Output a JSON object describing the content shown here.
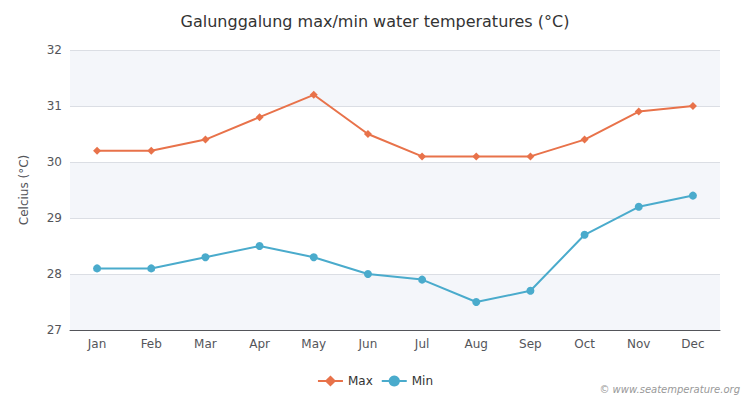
{
  "chart_data": {
    "type": "line",
    "title": "Galunggalung max/min water temperatures (°C)",
    "ylabel": "Celcius (°C)",
    "categories": [
      "Jan",
      "Feb",
      "Mar",
      "Apr",
      "May",
      "Jun",
      "Jul",
      "Aug",
      "Sep",
      "Oct",
      "Nov",
      "Dec"
    ],
    "series": [
      {
        "name": "Max",
        "color": "#e8724a",
        "marker": "diamond",
        "values": [
          30.2,
          30.2,
          30.4,
          30.8,
          31.2,
          30.5,
          30.1,
          30.1,
          30.1,
          30.4,
          30.9,
          31.0
        ]
      },
      {
        "name": "Min",
        "color": "#4aabcc",
        "marker": "circle",
        "values": [
          28.1,
          28.1,
          28.3,
          28.5,
          28.3,
          28.0,
          27.9,
          27.5,
          27.7,
          28.7,
          29.2,
          29.4
        ]
      }
    ],
    "ylim": [
      27,
      32
    ],
    "yticks": [
      27,
      28,
      29,
      30,
      31,
      32
    ],
    "grid": true,
    "legend": "bottom",
    "annotation": "© www.seatemperature.org"
  }
}
